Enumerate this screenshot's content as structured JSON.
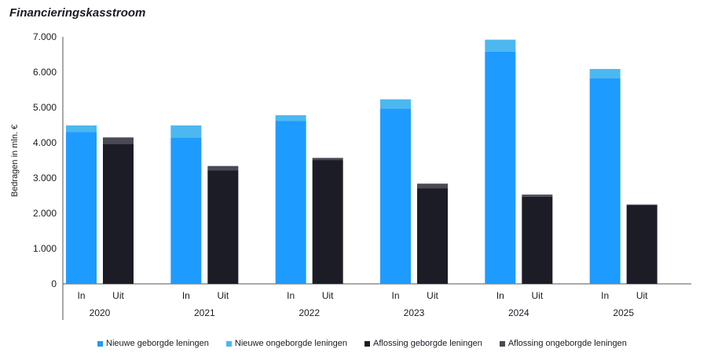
{
  "chart_data": {
    "type": "bar",
    "title": "Financieringskasstroom",
    "ylabel": "Bedragen in mln. €",
    "ylim": [
      0,
      7000
    ],
    "yticks": [
      "0",
      "1.000",
      "2.000",
      "3.000",
      "4.000",
      "5.000",
      "6.000",
      "7.000"
    ],
    "years": [
      "2020",
      "2021",
      "2022",
      "2023",
      "2024",
      "2025"
    ],
    "bar_labels": [
      "In",
      "Uit"
    ],
    "colors": {
      "nieuwe_geborgde": "#1e9bff",
      "nieuwe_ongeborgde": "#4cb8ef",
      "aflossing_geborgde": "#1c1c26",
      "aflossing_ongeborgde": "#4a4a55"
    },
    "series": [
      {
        "name": "Nieuwe geborgde leningen",
        "bar": "In",
        "values": [
          4300,
          4150,
          4620,
          4970,
          6580,
          5830
        ]
      },
      {
        "name": "Nieuwe ongeborgde leningen",
        "bar": "In",
        "values": [
          190,
          340,
          160,
          260,
          340,
          260
        ]
      },
      {
        "name": "Aflossing geborgde leningen",
        "bar": "Uit",
        "values": [
          3970,
          3220,
          3510,
          2710,
          2470,
          2230
        ]
      },
      {
        "name": "Aflossing ongeborgde leningen",
        "bar": "Uit",
        "values": [
          180,
          120,
          60,
          130,
          60,
          20
        ]
      }
    ],
    "legend": [
      {
        "label": "Nieuwe geborgde leningen",
        "color": "#1e9bff"
      },
      {
        "label": "Nieuwe ongeborgde leningen",
        "color": "#4cb8ef"
      },
      {
        "label": "Aflossing geborgde leningen",
        "color": "#1c1c26"
      },
      {
        "label": "Aflossing ongeborgde leningen",
        "color": "#4a4a55"
      }
    ],
    "legend_position": "bottom",
    "grid": false
  }
}
